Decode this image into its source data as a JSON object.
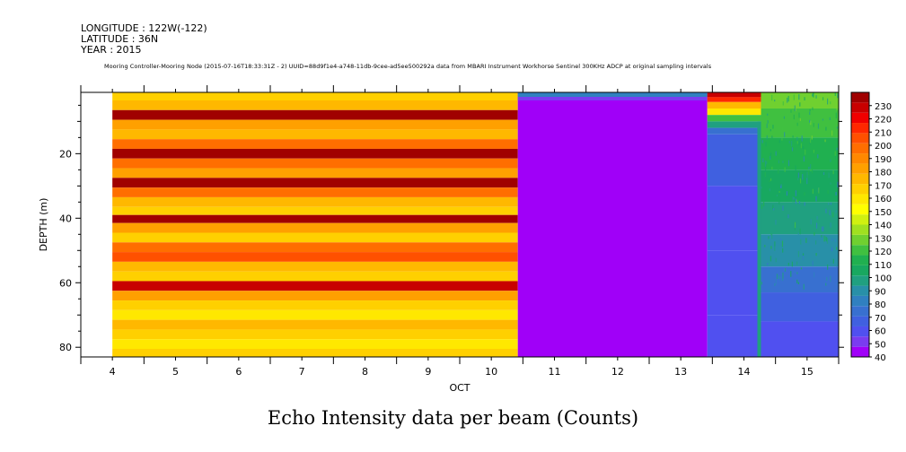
{
  "header": {
    "longitude": "LONGITUDE : 122W(-122)",
    "latitude": "LATITUDE : 36N",
    "year": "YEAR : 2015",
    "subtitle": "Mooring Controller-Mooring Node (2015-07-16T18:33:31Z - 2) UUID=88d9f1e4-a748-11db-9cee-ad5ee500292a data from MBARI Instrument Workhorse Sentinel 300KHz ADCP at original sampling intervals"
  },
  "bottom_title": "Echo Intensity data per beam (Counts)",
  "colors": {
    "scale": [
      "#a000f8",
      "#7a3cf0",
      "#5050f0",
      "#4060e0",
      "#3870d0",
      "#3080c0",
      "#2890a8",
      "#20a080",
      "#18a860",
      "#20b050",
      "#40c040",
      "#70d030",
      "#a0e020",
      "#d0f010",
      "#ffff00",
      "#ffe800",
      "#ffd000",
      "#ffb800",
      "#ffa000",
      "#ff8800",
      "#ff6e00",
      "#ff5000",
      "#ff2800",
      "#f00000",
      "#c80000",
      "#a00000"
    ]
  },
  "chart_data": {
    "type": "heatmap",
    "title": "Echo Intensity data per beam (Counts)",
    "xlabel": "OCT",
    "ylabel": "DEPTH (m)",
    "xlim": [
      3.5,
      15.5
    ],
    "ylim": [
      83,
      1
    ],
    "x_ticks": [
      4,
      5,
      6,
      7,
      8,
      9,
      10,
      11,
      12,
      13,
      14,
      15
    ],
    "x_tick_labels": [
      "4",
      "5",
      "6",
      "7",
      "8",
      "9",
      "10",
      "11",
      "12",
      "13",
      "14",
      "15"
    ],
    "y_ticks": [
      20,
      40,
      60,
      80
    ],
    "y_tick_labels": [
      "20",
      "40",
      "60",
      "80"
    ],
    "colorbar": {
      "levels": [
        40,
        50,
        60,
        70,
        80,
        90,
        100,
        110,
        120,
        130,
        140,
        150,
        160,
        170,
        180,
        190,
        200,
        210,
        220,
        230
      ],
      "labels": [
        "40",
        "50",
        "60",
        "70",
        "80",
        "90",
        "100",
        "110",
        "120",
        "130",
        "140",
        "150",
        "160",
        "170",
        "180",
        "190",
        "200",
        "210",
        "220",
        "230"
      ],
      "min": 40,
      "max": 240
    },
    "segments": [
      {
        "name": "banded",
        "x_start": 4.0,
        "x_end": 10.42,
        "description_value": "layers alternating ~160-235"
      },
      {
        "name": "saturated-low",
        "x_start": 10.42,
        "x_end": 13.42,
        "value": 40
      },
      {
        "name": "mixed",
        "x_start": 13.42,
        "x_end": 14.27,
        "value_top": 230,
        "value_bottom": 60
      },
      {
        "name": "noisy-green",
        "x_start": 14.27,
        "x_end": 15.5,
        "value_top": 110,
        "value_bottom": 55
      }
    ],
    "depth_profile_banded": [
      {
        "depth": 2,
        "value": 165
      },
      {
        "depth": 5,
        "value": 175
      },
      {
        "depth": 8,
        "value": 235
      },
      {
        "depth": 11,
        "value": 185
      },
      {
        "depth": 14,
        "value": 175
      },
      {
        "depth": 17,
        "value": 200
      },
      {
        "depth": 20,
        "value": 235
      },
      {
        "depth": 23,
        "value": 200
      },
      {
        "depth": 26,
        "value": 180
      },
      {
        "depth": 29,
        "value": 235
      },
      {
        "depth": 32,
        "value": 195
      },
      {
        "depth": 35,
        "value": 175
      },
      {
        "depth": 38,
        "value": 170
      },
      {
        "depth": 40,
        "value": 235
      },
      {
        "depth": 43,
        "value": 185
      },
      {
        "depth": 46,
        "value": 165
      },
      {
        "depth": 49,
        "value": 200
      },
      {
        "depth": 52,
        "value": 205
      },
      {
        "depth": 55,
        "value": 175
      },
      {
        "depth": 58,
        "value": 165
      },
      {
        "depth": 61,
        "value": 230
      },
      {
        "depth": 64,
        "value": 185
      },
      {
        "depth": 67,
        "value": 170
      },
      {
        "depth": 70,
        "value": 160
      },
      {
        "depth": 73,
        "value": 175
      },
      {
        "depth": 76,
        "value": 165
      },
      {
        "depth": 79,
        "value": 160
      },
      {
        "depth": 82,
        "value": 165
      }
    ]
  }
}
